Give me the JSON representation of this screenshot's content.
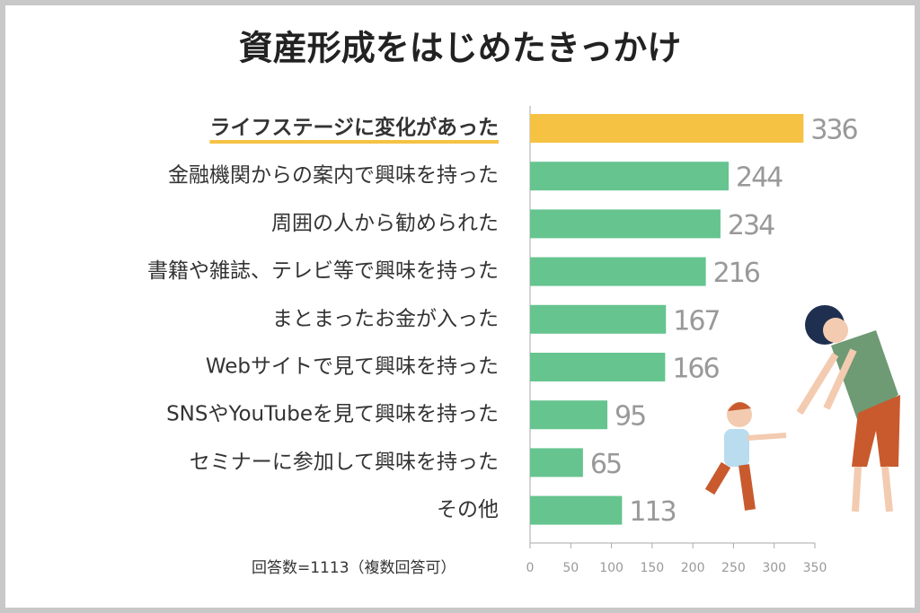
{
  "chart_data": {
    "type": "barh",
    "title": "資産形成をはじめたきっかけ",
    "categories": [
      "ライフステージに変化があった",
      "金融機関からの案内で興味を持った",
      "周囲の人から勧められた",
      "書籍や雑誌、テレビ等で興味を持った",
      "まとまったお金が入った",
      "Webサイトで見て興味を持った",
      "SNSやYouTubeを見て興味を持った",
      "セミナーに参加して興味を持った",
      "その他"
    ],
    "values": [
      336,
      244,
      234,
      216,
      167,
      166,
      95,
      65,
      113
    ],
    "colors": [
      "#f6c244",
      "#66c48f",
      "#66c48f",
      "#66c48f",
      "#66c48f",
      "#66c48f",
      "#66c48f",
      "#66c48f",
      "#66c48f"
    ],
    "xlim": [
      0,
      350
    ],
    "xticks": [
      0,
      50,
      100,
      150,
      200,
      250,
      300,
      350
    ],
    "note": "回答数=1113（複数回答可）"
  }
}
